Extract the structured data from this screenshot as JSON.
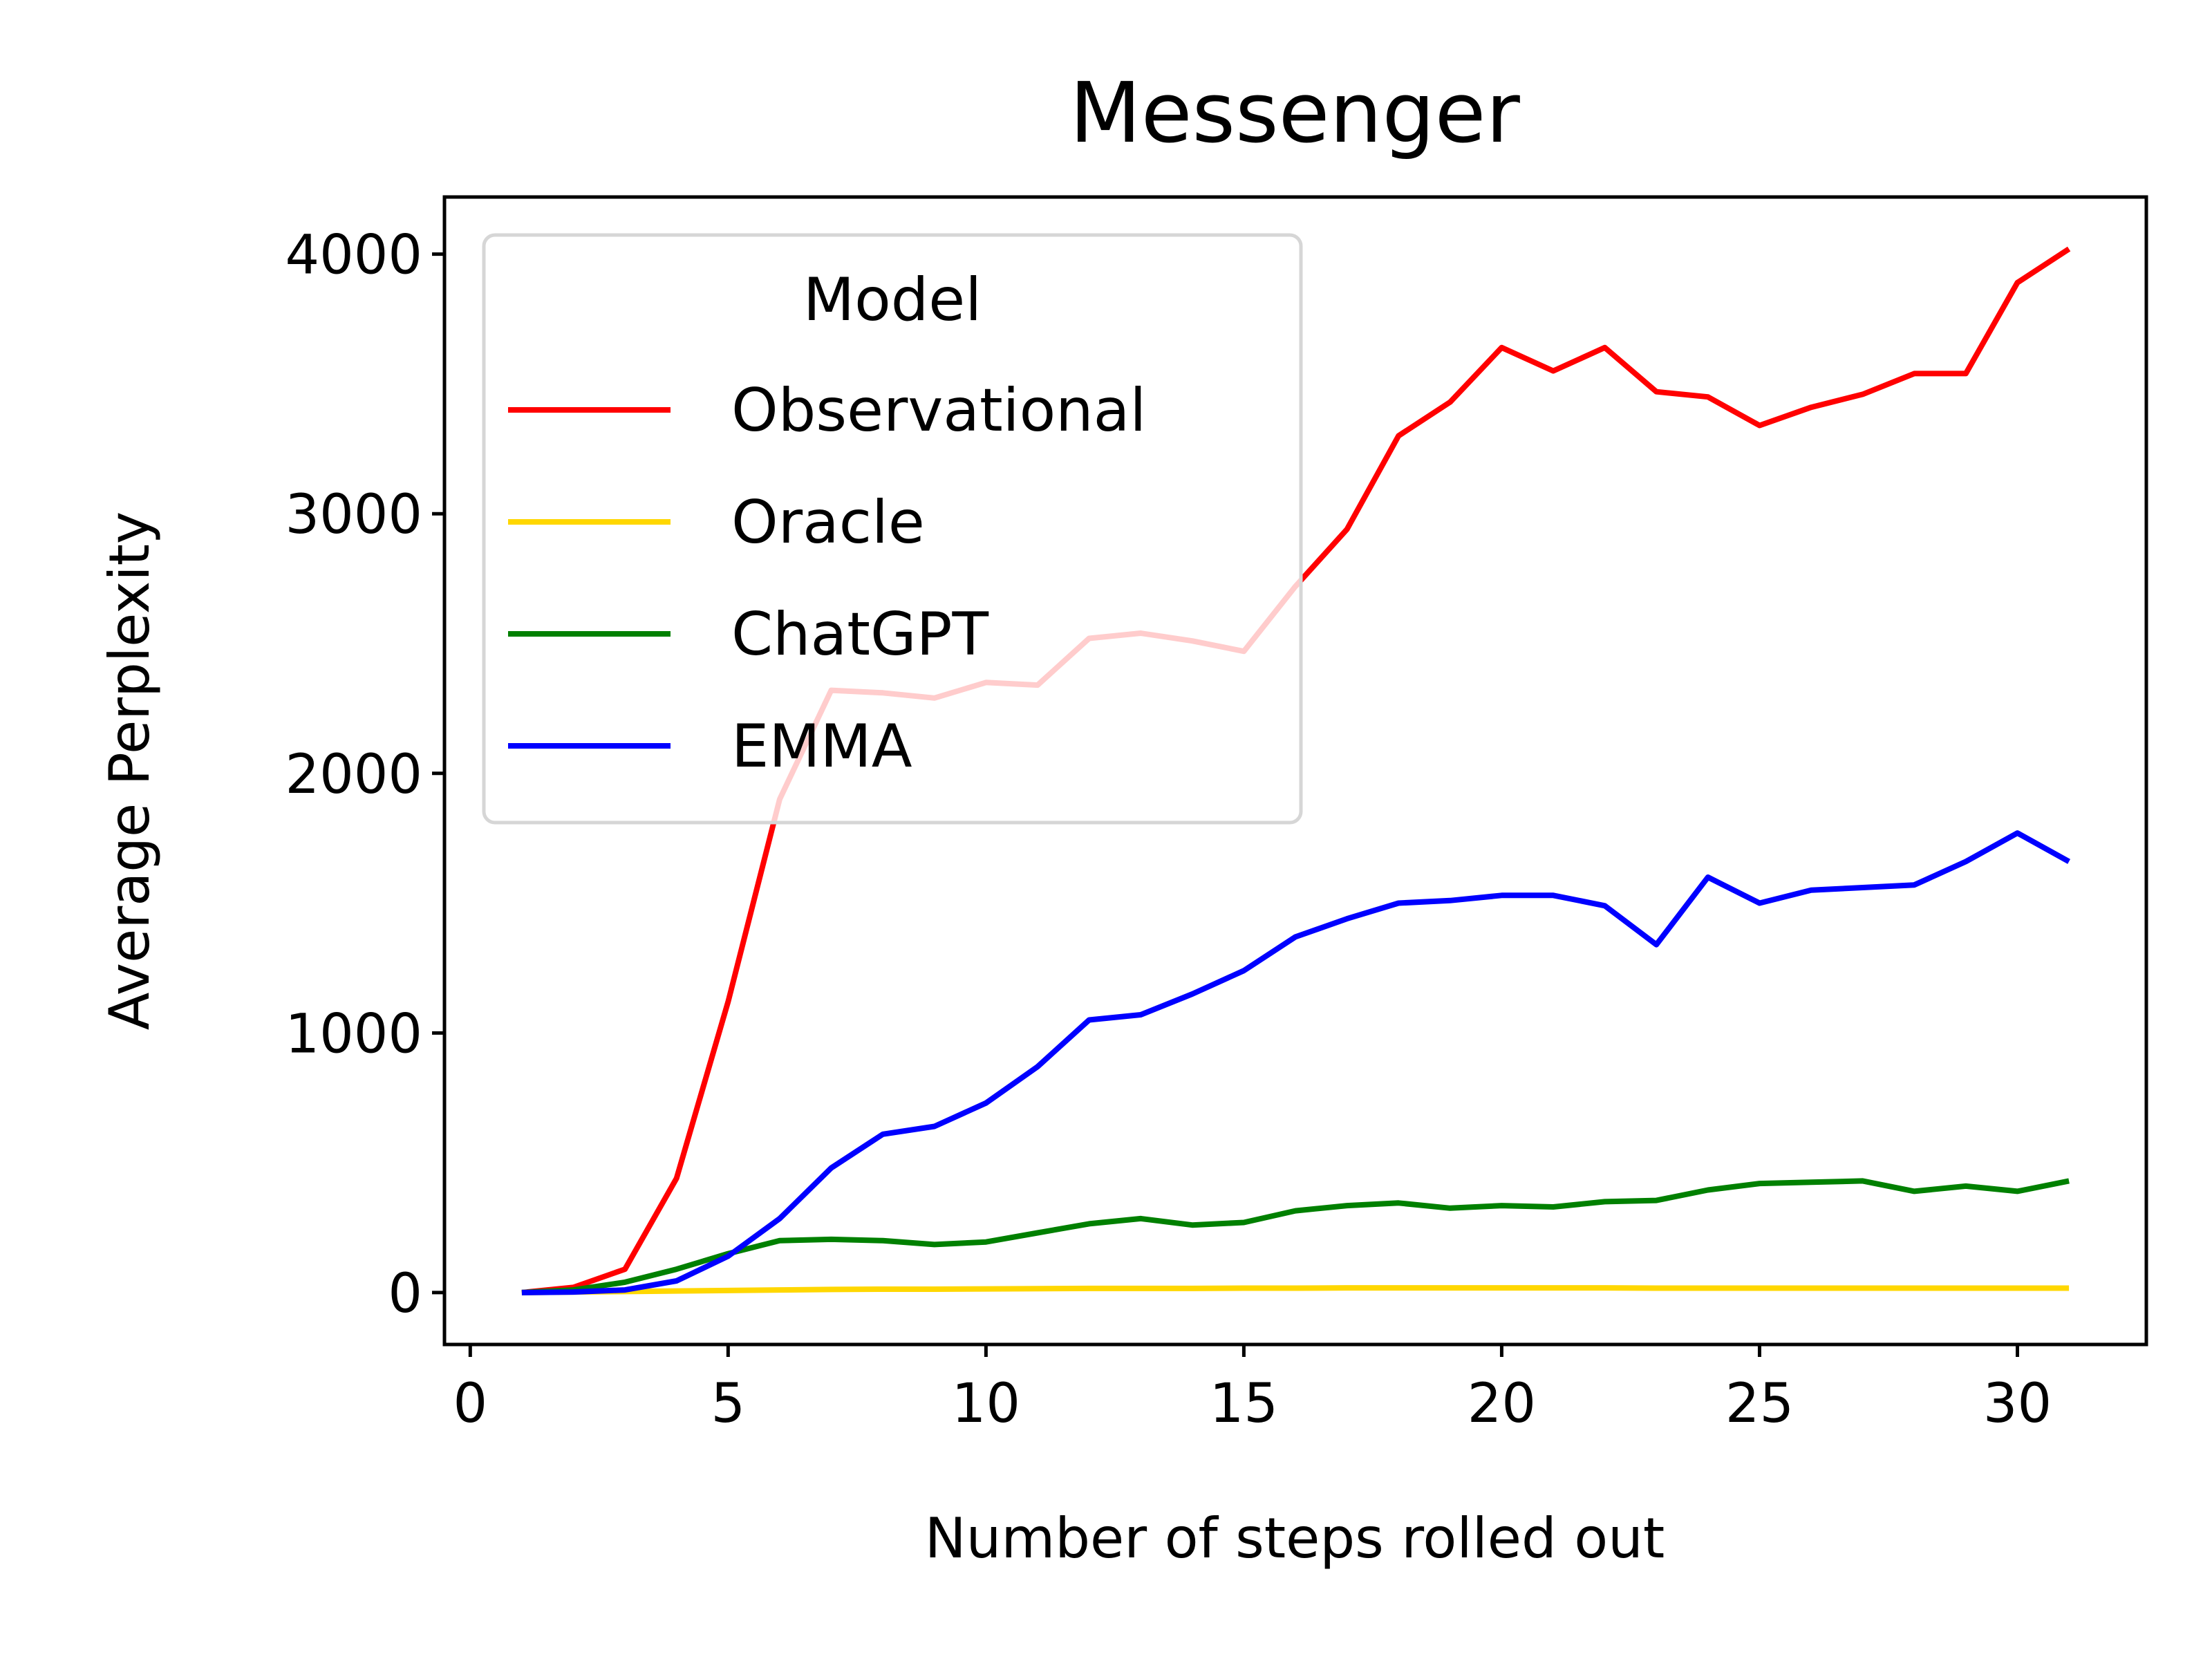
{
  "chart_data": {
    "type": "line",
    "title": "Messenger",
    "xlabel": "Number of steps rolled out",
    "ylabel": "Average Perplexity",
    "xlim": [
      -0.5,
      32.5
    ],
    "ylim": [
      -200,
      4220
    ],
    "xticks": [
      0,
      5,
      10,
      15,
      20,
      25,
      30
    ],
    "xtick_labels": [
      "0",
      "5",
      "10",
      "15",
      "20",
      "25",
      "30"
    ],
    "yticks": [
      0,
      1000,
      2000,
      3000,
      4000
    ],
    "ytick_labels": [
      "0",
      "1000",
      "2000",
      "3000",
      "4000"
    ],
    "grid": false,
    "legend": {
      "title": "Model",
      "position": "upper-left"
    },
    "x": [
      1,
      2,
      3,
      4,
      5,
      6,
      7,
      8,
      9,
      10,
      11,
      12,
      13,
      14,
      15,
      16,
      17,
      18,
      19,
      20,
      21,
      22,
      23,
      24,
      25,
      26,
      27,
      28,
      29,
      30,
      31
    ],
    "series": [
      {
        "name": "Observational",
        "color": "#ff0000",
        "values": [
          0,
          20,
          90,
          440,
          1120,
          1900,
          2320,
          2310,
          2290,
          2350,
          2340,
          2520,
          2540,
          2510,
          2470,
          2720,
          2940,
          3300,
          3430,
          3640,
          3550,
          3640,
          3470,
          3450,
          3340,
          3410,
          3460,
          3540,
          3540,
          3890,
          4020
        ]
      },
      {
        "name": "Oracle",
        "color": "#ffd700",
        "values": [
          0,
          2,
          4,
          6,
          8,
          10,
          12,
          13,
          13,
          14,
          15,
          16,
          16,
          16,
          17,
          17,
          18,
          18,
          18,
          18,
          18,
          18,
          17,
          17,
          17,
          17,
          17,
          17,
          17,
          17,
          17
        ]
      },
      {
        "name": "ChatGPT",
        "color": "#008000",
        "values": [
          0,
          10,
          40,
          90,
          150,
          200,
          205,
          200,
          185,
          195,
          230,
          265,
          285,
          260,
          270,
          315,
          335,
          345,
          325,
          335,
          330,
          350,
          355,
          395,
          420,
          425,
          430,
          390,
          410,
          390,
          430
        ]
      },
      {
        "name": "EMMA",
        "color": "#0000ff",
        "values": [
          0,
          2,
          10,
          45,
          140,
          285,
          480,
          610,
          640,
          730,
          870,
          1050,
          1070,
          1150,
          1240,
          1370,
          1440,
          1500,
          1510,
          1530,
          1530,
          1490,
          1340,
          1600,
          1500,
          1550,
          1560,
          1570,
          1660,
          1770,
          1660
        ]
      }
    ]
  }
}
